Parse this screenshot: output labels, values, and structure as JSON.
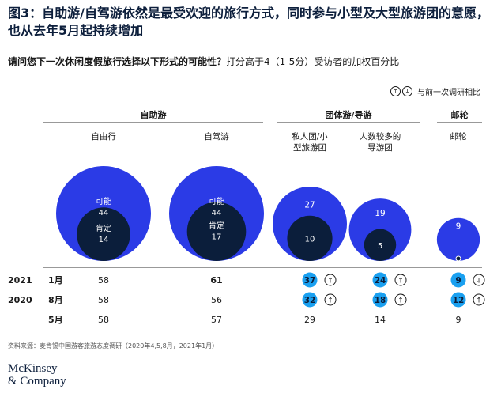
{
  "title": "图3：自助游/自驾游依然是最受欢迎的旅行方式，同时参与小型及大型旅游团的意愿，也从去年5月起持续增加",
  "subtitle_bold": "请问您下一次休闲度假旅行选择以下形式的可能性？",
  "subtitle_rest": "打分高于4（1-5分）受访者的加权百分比",
  "legend": {
    "up": "↑",
    "down": "↓",
    "text": "与前一次调研相比"
  },
  "source": "资料来源：麦肯锡中国游客旅游态度调研（2020年4,5,8月，2021年1月）",
  "logo": {
    "line1": "McKinsey",
    "line2": "& Company"
  },
  "colors": {
    "blue": "#2b3be6",
    "dark": "#0b1e3b",
    "cyan": "#1aa0f0",
    "white": "#ffffff"
  },
  "chart_data": {
    "type": "bubble-table",
    "groups": [
      {
        "name": "自助游",
        "columns": [
          0,
          1
        ]
      },
      {
        "name": "团体游/导游",
        "columns": [
          2,
          3
        ]
      },
      {
        "name": "邮轮",
        "columns": [
          4
        ]
      }
    ],
    "columns": [
      {
        "label": "自由行",
        "possible": 44,
        "definite": 14,
        "possible_label": "可能",
        "definite_label": "肯定"
      },
      {
        "label": "自驾游",
        "possible": 44,
        "definite": 17,
        "possible_label": "可能",
        "definite_label": "肯定"
      },
      {
        "label": "私人团/小型旅游团",
        "possible": 27,
        "definite": 10
      },
      {
        "label": "人数较多的导游团",
        "possible": 19,
        "definite": 5
      },
      {
        "label": "邮轮",
        "possible": 9,
        "definite": 0
      }
    ],
    "rows": [
      {
        "year": "2021",
        "month": "1月",
        "values": [
          {
            "v": "58"
          },
          {
            "v": "61",
            "bold": true
          },
          {
            "v": "37",
            "highlight": true,
            "arrow": "up"
          },
          {
            "v": "24",
            "highlight": true,
            "arrow": "up"
          },
          {
            "v": "9",
            "highlight": true,
            "arrow": "down"
          }
        ]
      },
      {
        "year": "2020",
        "month": "8月",
        "values": [
          {
            "v": "58"
          },
          {
            "v": "56"
          },
          {
            "v": "32",
            "highlight": true,
            "arrow": "up"
          },
          {
            "v": "18",
            "highlight": true,
            "arrow": "up"
          },
          {
            "v": "12",
            "highlight": true,
            "arrow": "up"
          }
        ]
      },
      {
        "year": "",
        "month": "5月",
        "values": [
          {
            "v": "58"
          },
          {
            "v": "57"
          },
          {
            "v": "29"
          },
          {
            "v": "14"
          },
          {
            "v": "9"
          }
        ]
      }
    ]
  }
}
